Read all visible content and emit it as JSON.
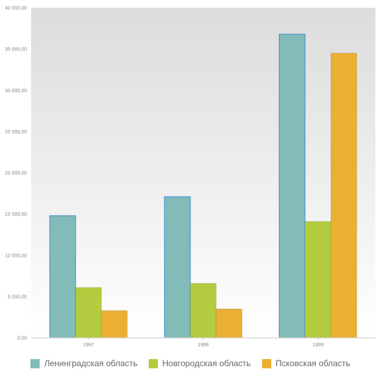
{
  "chart_data": {
    "type": "bar",
    "categories": [
      "1997",
      "1998",
      "1999"
    ],
    "series": [
      {
        "name": "Ленинградская область",
        "color": "#82bbb8",
        "values": [
          14800,
          17100,
          36800
        ]
      },
      {
        "name": "Новгородская область",
        "color": "#b3cc3f",
        "values": [
          6100,
          6600,
          14100
        ]
      },
      {
        "name": "Псковская область",
        "color": "#ebb033",
        "values": [
          3300,
          3500,
          34500
        ]
      }
    ],
    "ylim": [
      0,
      40000
    ],
    "yticks": [
      0,
      5000,
      10000,
      15000,
      20000,
      25000,
      30000,
      35000,
      40000
    ],
    "ytick_labels": [
      "0,00",
      "5 000,00",
      "10 000,00",
      "15 000,00",
      "20 000,00",
      "25 000,00",
      "30 000,00",
      "35 000,00",
      "40 000,00"
    ],
    "title": "",
    "xlabel": "",
    "ylabel": "",
    "grid": false,
    "legend_position": "bottom",
    "highlight_border": "#3d8fd6"
  }
}
